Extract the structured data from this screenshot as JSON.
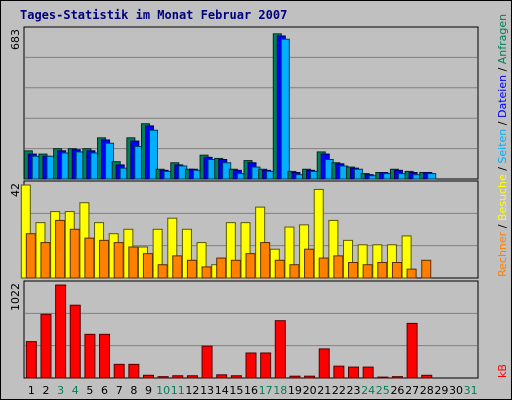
{
  "chart_data": {
    "type": "bar",
    "title": "Tages-Statistik im Monat Februar 2007",
    "categories": [
      "1",
      "2",
      "3",
      "4",
      "5",
      "6",
      "7",
      "8",
      "9",
      "10",
      "11",
      "12",
      "13",
      "14",
      "15",
      "16",
      "17",
      "18",
      "19",
      "20",
      "21",
      "22",
      "23",
      "24",
      "25",
      "26",
      "27",
      "28",
      "29",
      "30",
      "31"
    ],
    "weekend_days": [
      "3",
      "4",
      "10",
      "11",
      "17",
      "18",
      "24",
      "25",
      "31"
    ],
    "panels": [
      {
        "id": "top",
        "ymax": 683,
        "ymax_label": "683",
        "series": [
          {
            "name": "Anfragen",
            "color": "#00805a",
            "values": [
              130,
              115,
              140,
              140,
              140,
              190,
              80,
              190,
              255,
              45,
              75,
              45,
              110,
              95,
              45,
              85,
              45,
              670,
              35,
              45,
              125,
              75,
              55,
              25,
              30,
              45,
              35,
              30,
              0,
              0,
              0
            ]
          },
          {
            "name": "Dateien",
            "color": "#0000ff",
            "values": [
              115,
              105,
              130,
              135,
              130,
              180,
              65,
              175,
              245,
              40,
              65,
              45,
              100,
              90,
              40,
              75,
              40,
              660,
              30,
              40,
              115,
              70,
              50,
              20,
              30,
              40,
              30,
              30,
              0,
              0,
              0
            ]
          },
          {
            "name": "Seiten",
            "color": "#00b0ff",
            "values": [
              105,
              105,
              120,
              125,
              120,
              165,
              50,
              150,
              225,
              35,
              60,
              40,
              90,
              75,
              25,
              55,
              35,
              645,
              20,
              35,
              90,
              60,
              45,
              15,
              25,
              25,
              20,
              25,
              0,
              0,
              0
            ]
          }
        ]
      },
      {
        "id": "middle",
        "ymax": 42,
        "ymax_label": "42",
        "series": [
          {
            "name": "Besuche",
            "color": "#ffff00",
            "values": [
              42,
              25,
              30,
              30,
              34,
              25,
              20,
              22,
              14,
              22,
              27,
              22,
              16,
              6,
              25,
              25,
              32,
              13,
              23,
              24,
              40,
              26,
              17,
              15,
              15,
              15,
              19,
              0,
              0,
              0,
              0
            ]
          },
          {
            "name": "Rechner",
            "color": "#ff8000",
            "values": [
              20,
              16,
              26,
              22,
              18,
              17,
              16,
              14,
              11,
              6,
              10,
              8,
              5,
              9,
              8,
              11,
              16,
              8,
              6,
              13,
              9,
              10,
              7,
              6,
              7,
              7,
              4,
              8,
              0,
              0,
              0
            ]
          }
        ]
      },
      {
        "id": "bottom",
        "ymax": 1022,
        "ymax_label": "1022",
        "series": [
          {
            "name": "kB",
            "color": "#ff0000",
            "values": [
              400,
              700,
              1022,
              800,
              480,
              480,
              150,
              150,
              30,
              15,
              25,
              25,
              350,
              35,
              25,
              275,
              275,
              630,
              20,
              20,
              320,
              130,
              120,
              120,
              10,
              15,
              600,
              30,
              0,
              0,
              0
            ]
          }
        ]
      }
    ],
    "right_legend_top": [
      "Anfragen",
      "/",
      "Dateien",
      "/",
      "Seiten",
      "/",
      "Besuche",
      "/",
      "Rechner"
    ],
    "right_legend_bottom": "kB",
    "grid": true
  }
}
